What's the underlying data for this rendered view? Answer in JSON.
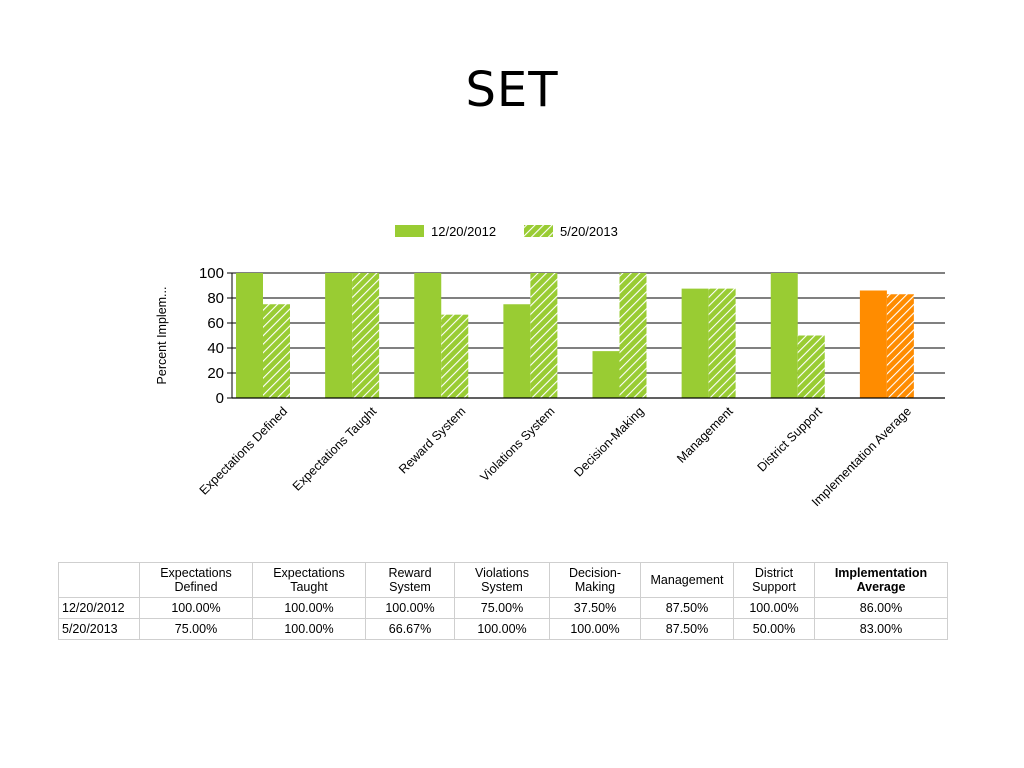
{
  "slide": {
    "title": "SET"
  },
  "chart_data": {
    "type": "bar",
    "categories": [
      "Expectations Defined",
      "Expectations Taught",
      "Reward System",
      "Violations System",
      "Decision-Making",
      "Management",
      "District Support",
      "Implementation Average"
    ],
    "series": [
      {
        "name": "12/20/2012",
        "values": [
          100,
          100,
          100,
          75,
          37.5,
          87.5,
          100,
          86
        ],
        "pattern": "solid"
      },
      {
        "name": "5/20/2013",
        "values": [
          75,
          100,
          66.67,
          100,
          100,
          87.5,
          50,
          83
        ],
        "pattern": "hatched"
      }
    ],
    "ylabel": "Percent Implem...",
    "xlabel": "",
    "ylim": [
      0,
      100
    ],
    "yticks": [
      "0",
      "20",
      "40",
      "60",
      "80",
      "100"
    ],
    "grid": true,
    "legend": "top",
    "colors": {
      "primary": "#99cc33",
      "highlight": "#ff8c00",
      "highlight_category": "Implementation Average"
    }
  },
  "table": {
    "headers": [
      "",
      "Expectations Defined",
      "Expectations Taught",
      "Reward System",
      "Violations System",
      "Decision-Making",
      "Management",
      "District Support",
      "Implementation Average"
    ],
    "header_lines": [
      [
        ""
      ],
      [
        "Expectations",
        "Defined"
      ],
      [
        "Expectations",
        "Taught"
      ],
      [
        "Reward",
        "System"
      ],
      [
        "Violations",
        "System"
      ],
      [
        "Decision-",
        "Making"
      ],
      [
        "Management"
      ],
      [
        "District",
        "Support"
      ],
      [
        "Implementation",
        "Average"
      ]
    ],
    "rows": [
      [
        "12/20/2012",
        "100.00%",
        "100.00%",
        "100.00%",
        "75.00%",
        "37.50%",
        "87.50%",
        "100.00%",
        "86.00%"
      ],
      [
        "5/20/2013",
        "75.00%",
        "100.00%",
        "66.67%",
        "100.00%",
        "100.00%",
        "87.50%",
        "50.00%",
        "83.00%"
      ]
    ]
  }
}
